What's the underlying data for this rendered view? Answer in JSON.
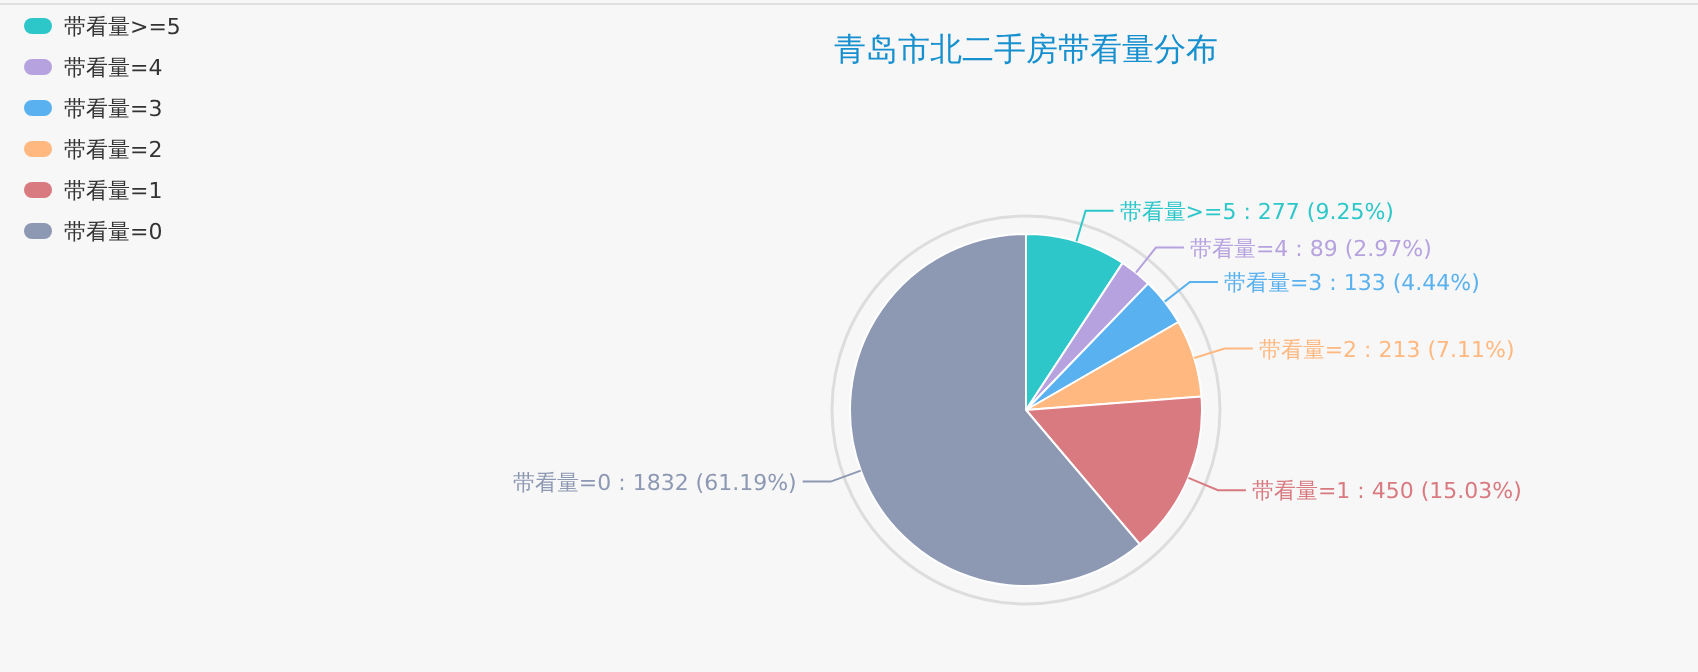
{
  "chart_data": {
    "type": "pie",
    "title": "青岛市北二手房带看量分布",
    "categories": [
      "带看量>=5",
      "带看量=4",
      "带看量=3",
      "带看量=2",
      "带看量=1",
      "带看量=0"
    ],
    "values": [
      277,
      89,
      133,
      213,
      450,
      1832
    ],
    "value_labels": [
      ": 277 (9.25%)",
      ": 89 (2.97%)",
      ": 133 (4.44%)",
      ": 213 (7.11%)",
      ": 450 (15.03%)",
      ": 1832 (61.19%)"
    ],
    "colors": [
      "#2ec7c9",
      "#b6a2de",
      "#5ab1ef",
      "#ffb980",
      "#d87a80",
      "#8d98b3"
    ],
    "legend": "top left"
  }
}
